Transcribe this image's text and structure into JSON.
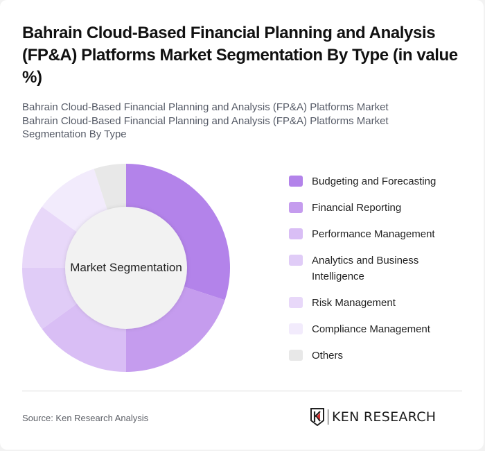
{
  "header": {
    "title": "Bahrain Cloud-Based Financial Planning and Analysis (FP&A) Platforms Market Segmentation By Type (in value %)",
    "subtitle_line1": "Bahrain Cloud-Based Financial Planning and Analysis (FP&A) Platforms Market",
    "subtitle_line2": "Bahrain Cloud-Based Financial Planning and Analysis (FP&A) Platforms Market Segmentation By Type"
  },
  "chart": {
    "center_label": "Market Segmentation"
  },
  "legend": {
    "items": [
      {
        "label": "Budgeting and Forecasting",
        "color": "#b383ea"
      },
      {
        "label": "Financial Reporting",
        "color": "#c59cee"
      },
      {
        "label": "Performance Management",
        "color": "#d9bef5"
      },
      {
        "label": "Analytics and Business Intelligence",
        "color": "#e0ccf7"
      },
      {
        "label": "Risk Management",
        "color": "#e8d8f9"
      },
      {
        "label": "Compliance Management",
        "color": "#f2ebfc"
      },
      {
        "label": "Others",
        "color": "#e8e8e8"
      }
    ]
  },
  "footer": {
    "source": "Source: Ken Research Analysis",
    "logo_text": "KEN RESEARCH"
  },
  "chart_data": {
    "type": "pie",
    "subtype": "donut",
    "title": "Bahrain Cloud-Based Financial Planning and Analysis (FP&A) Platforms Market Segmentation By Type (in value %)",
    "center_label": "Market Segmentation",
    "categories": [
      "Budgeting and Forecasting",
      "Financial Reporting",
      "Performance Management",
      "Analytics and Business Intelligence",
      "Risk Management",
      "Compliance Management",
      "Others"
    ],
    "values": [
      30,
      20,
      15,
      10,
      10,
      10,
      5
    ],
    "colors": [
      "#b383ea",
      "#c59cee",
      "#d9bef5",
      "#e0ccf7",
      "#e8d8f9",
      "#f2ebfc",
      "#e8e8e8"
    ],
    "legend_position": "right",
    "start_angle": "12 o'clock, clockwise"
  }
}
